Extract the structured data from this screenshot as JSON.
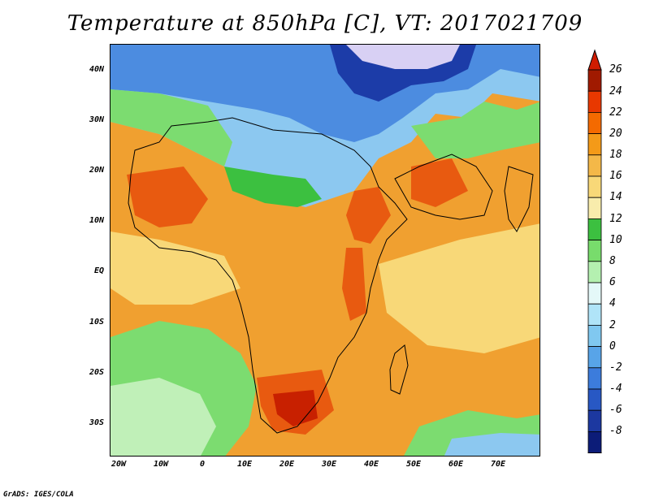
{
  "title": "Temperature at 850hPa [C], VT: 2017021709",
  "credit": "GrADS: IGES/COLA",
  "lat_labels": [
    "40N",
    "30N",
    "20N",
    "10N",
    "EQ",
    "10S",
    "20S",
    "30S"
  ],
  "lon_labels": [
    "20W",
    "10W",
    "0",
    "10E",
    "20E",
    "30E",
    "40E",
    "50E",
    "60E",
    "70E"
  ],
  "colorbar": {
    "labels": [
      "26",
      "24",
      "22",
      "20",
      "18",
      "16",
      "14",
      "12",
      "10",
      "8",
      "6",
      "4",
      "2",
      "0",
      "-2",
      "-4",
      "-6",
      "-8"
    ],
    "colors": [
      "#a01a00",
      "#e83800",
      "#f46a00",
      "#f49a18",
      "#f4b848",
      "#f8d878",
      "#f8ecac",
      "#3cc040",
      "#78dc6c",
      "#b4f0b0",
      "#e4f8f8",
      "#b0e4f8",
      "#80c8f0",
      "#58a4e8",
      "#3c7cdc",
      "#2858c4",
      "#1c38a0",
      "#0c1c78",
      "#e0d8f8"
    ],
    "over_color": "#d01c00",
    "under_color": "#e0d8f8"
  },
  "field_colors": {
    "ocean_warm": "#f0a030",
    "hot": "#e85a10",
    "very_hot": "#c82000",
    "mild": "#f8d878",
    "green": "#3cc040",
    "light_green": "#7cdc70",
    "pale_green": "#c0f0b8",
    "light_blue": "#8cc8f0",
    "blue": "#4c8ce0",
    "dark_blue": "#1c3ca8",
    "very_dark_blue": "#0c1c78",
    "lavender": "#d8d0f4"
  }
}
